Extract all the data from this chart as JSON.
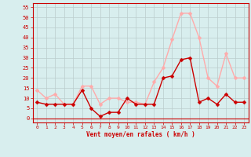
{
  "x": [
    0,
    1,
    2,
    3,
    4,
    5,
    6,
    7,
    8,
    9,
    10,
    11,
    12,
    13,
    14,
    15,
    16,
    17,
    18,
    19,
    20,
    21,
    22,
    23
  ],
  "rafales": [
    14,
    10,
    12,
    7,
    7,
    16,
    16,
    7,
    10,
    10,
    8,
    8,
    7,
    18,
    25,
    39,
    52,
    52,
    40,
    20,
    16,
    32,
    20,
    20
  ],
  "moyen": [
    8,
    7,
    7,
    7,
    7,
    14,
    5,
    1,
    3,
    3,
    10,
    7,
    7,
    7,
    20,
    21,
    29,
    30,
    8,
    10,
    7,
    12,
    8,
    8
  ],
  "xlim": [
    -0.5,
    23.5
  ],
  "ylim": [
    -2,
    57
  ],
  "yticks": [
    0,
    5,
    10,
    15,
    20,
    25,
    30,
    35,
    40,
    45,
    50,
    55
  ],
  "xticks": [
    0,
    1,
    2,
    3,
    4,
    5,
    6,
    7,
    8,
    9,
    10,
    11,
    12,
    13,
    14,
    15,
    16,
    17,
    18,
    19,
    20,
    21,
    22,
    23
  ],
  "color_rafales": "#ffaaaa",
  "color_moyen": "#cc0000",
  "bg_color": "#d8eeee",
  "grid_color": "#bbcccc",
  "xlabel": "Vent moyen/en rafales ( km/h )",
  "xlabel_color": "#cc0000",
  "line_width": 1.0,
  "marker_size": 2.5
}
